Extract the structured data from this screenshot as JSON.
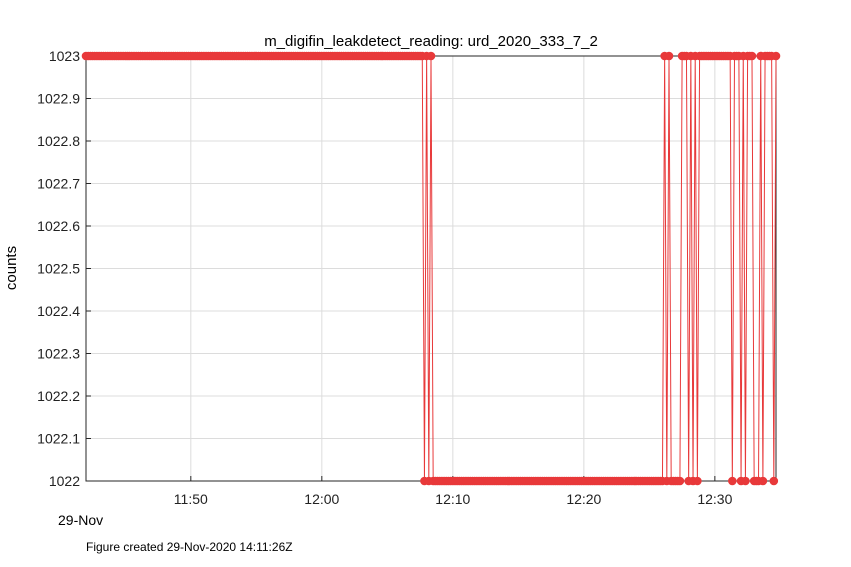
{
  "chart_data": {
    "type": "line",
    "title": "m_digifin_leakdetect_reading: urd_2020_333_7_2",
    "xlabel": "",
    "ylabel": "counts",
    "date_label": "29-Nov",
    "xlim": [
      "11:42:00",
      "12:34:40"
    ],
    "ylim": [
      1022,
      1023
    ],
    "x_ticks": [
      "11:50",
      "12:00",
      "12:10",
      "12:20",
      "12:30"
    ],
    "y_ticks": [
      "1022",
      "1022.1",
      "1022.2",
      "1022.3",
      "1022.4",
      "1022.5",
      "1022.6",
      "1022.7",
      "1022.8",
      "1022.9",
      "1023"
    ],
    "grid": true,
    "legend": "none",
    "color": "#e8393a",
    "series": [
      {
        "segments": [
          {
            "from": "11:42:00",
            "to": "12:07:40",
            "value": 1023
          },
          {
            "time": "12:07:50",
            "value": 1022
          },
          {
            "time": "12:08:00",
            "value": 1023
          },
          {
            "time": "12:08:10",
            "value": 1022
          },
          {
            "time": "12:08:20",
            "value": 1023
          },
          {
            "from": "12:08:30",
            "to": "12:26:00",
            "value": 1022
          },
          {
            "time": "12:26:10",
            "value": 1023
          },
          {
            "time": "12:26:20",
            "value": 1022
          },
          {
            "time": "12:26:30",
            "value": 1023
          },
          {
            "from": "12:26:40",
            "to": "12:27:20",
            "value": 1022
          },
          {
            "from": "12:27:30",
            "to": "12:27:50",
            "value": 1023
          },
          {
            "time": "12:28:00",
            "value": 1022
          },
          {
            "time": "12:28:10",
            "value": 1023
          },
          {
            "time": "12:28:20",
            "value": 1022
          },
          {
            "time": "12:28:30",
            "value": 1023
          },
          {
            "time": "12:28:40",
            "value": 1022
          },
          {
            "from": "12:28:50",
            "to": "12:31:10",
            "value": 1023
          },
          {
            "time": "12:31:20",
            "value": 1022
          },
          {
            "from": "12:31:30",
            "to": "12:31:50",
            "value": 1023
          },
          {
            "time": "12:32:00",
            "value": 1022
          },
          {
            "time": "12:32:10",
            "value": 1023
          },
          {
            "time": "12:32:20",
            "value": 1022
          },
          {
            "from": "12:32:30",
            "to": "12:32:50",
            "value": 1023
          },
          {
            "from": "12:33:00",
            "to": "12:33:20",
            "value": 1022
          },
          {
            "time": "12:33:30",
            "value": 1023
          },
          {
            "time": "12:33:40",
            "value": 1022
          },
          {
            "from": "12:33:50",
            "to": "12:34:20",
            "value": 1023
          },
          {
            "time": "12:34:30",
            "value": 1022
          },
          {
            "time": "12:34:40",
            "value": 1023
          }
        ]
      }
    ]
  },
  "footnote": "Figure created 29-Nov-2020 14:11:26Z"
}
